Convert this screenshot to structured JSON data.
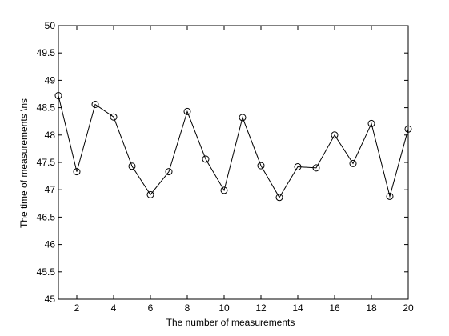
{
  "chart_data": {
    "type": "line",
    "title": "",
    "xlabel": "The number of measurements",
    "ylabel": "The time of measurements  \\ns",
    "xlim": [
      1,
      20
    ],
    "ylim": [
      45,
      50
    ],
    "xticks": [
      2,
      4,
      6,
      8,
      10,
      12,
      14,
      16,
      18,
      20
    ],
    "yticks": [
      45,
      45.5,
      46,
      46.5,
      47,
      47.5,
      48,
      48.5,
      49,
      49.5,
      50
    ],
    "grid": false,
    "legend": "none",
    "marker": "circle",
    "line_color": "#000000",
    "series": [
      {
        "x": [
          1,
          2,
          3,
          4,
          5,
          6,
          7,
          8,
          9,
          10,
          11,
          12,
          13,
          14,
          15,
          16,
          17,
          18,
          19,
          20
        ],
        "values": [
          48.72,
          47.33,
          48.56,
          48.33,
          47.43,
          46.91,
          47.33,
          48.43,
          47.56,
          46.99,
          48.32,
          47.44,
          46.86,
          47.42,
          47.4,
          48.0,
          47.48,
          48.21,
          46.88,
          48.11
        ]
      }
    ]
  }
}
